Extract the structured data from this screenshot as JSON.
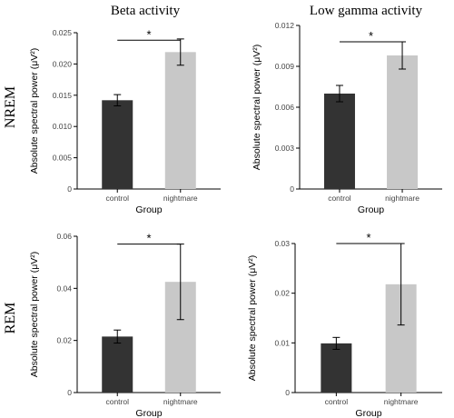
{
  "column_titles": [
    "Beta activity",
    "Low gamma activity"
  ],
  "row_titles": [
    "NREM",
    "REM"
  ],
  "colors": {
    "control": "#333333",
    "nightmare": "#c8c8c8"
  },
  "chart_data": [
    {
      "type": "bar",
      "title": "",
      "categories": [
        "control",
        "nightmare"
      ],
      "values": [
        0.0142,
        0.0219
      ],
      "error": [
        0.0009,
        0.0021
      ],
      "ylim": [
        0,
        0.025
      ],
      "yticks": [
        0,
        0.005,
        0.01,
        0.015,
        0.02,
        0.025
      ],
      "ytick_labels": [
        "0",
        "0.005",
        "0.010",
        "0.015",
        "0.020",
        "0.025"
      ],
      "xlabel": "Group",
      "ylabel": "Absolute spectral power (μV²)",
      "significance": {
        "label": "*",
        "y": 0.0238
      }
    },
    {
      "type": "bar",
      "title": "",
      "categories": [
        "control",
        "nightmare"
      ],
      "values": [
        0.007,
        0.0098
      ],
      "error": [
        0.0006,
        0.001
      ],
      "ylim": [
        0,
        0.012
      ],
      "yticks": [
        0,
        0.003,
        0.006,
        0.009,
        0.012
      ],
      "ytick_labels": [
        "0",
        "0.003",
        "0.006",
        "0.009",
        "0.012"
      ],
      "xlabel": "Group",
      "ylabel": "Absolute spectral power (μV²)",
      "significance": {
        "label": "*",
        "y": 0.0108
      }
    },
    {
      "type": "bar",
      "title": "",
      "categories": [
        "control",
        "nightmare"
      ],
      "values": [
        0.0215,
        0.0425
      ],
      "error": [
        0.0025,
        0.0145
      ],
      "ylim": [
        0,
        0.06
      ],
      "yticks": [
        0,
        0.02,
        0.04,
        0.06
      ],
      "ytick_labels": [
        "0",
        "0.02",
        "0.04",
        "0.06"
      ],
      "xlabel": "Group",
      "ylabel": "Absolute spectral power (μV²)",
      "significance": {
        "label": "*",
        "y": 0.057
      }
    },
    {
      "type": "bar",
      "title": "",
      "categories": [
        "control",
        "nightmare"
      ],
      "values": [
        0.0099,
        0.0218
      ],
      "error": [
        0.0012,
        0.0082
      ],
      "ylim": [
        0,
        0.03
      ],
      "yticks": [
        0,
        0.01,
        0.02,
        0.03
      ],
      "ytick_labels": [
        "0",
        "0.01",
        "0.02",
        "0.03"
      ],
      "xlabel": "Group",
      "ylabel": "Absolute spectral power (μV²)",
      "significance": {
        "label": "*",
        "y": 0.03
      }
    }
  ]
}
